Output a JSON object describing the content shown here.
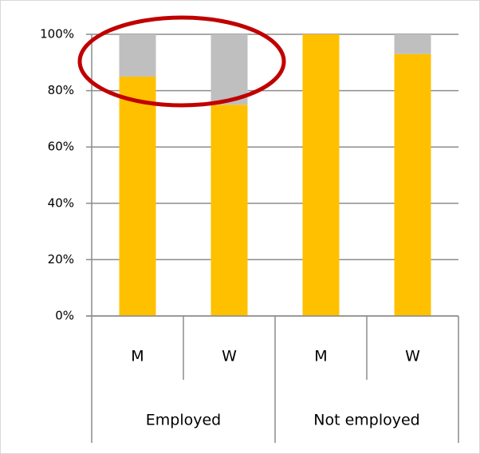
{
  "chart_data": {
    "type": "stacked-bar",
    "categories": [
      "M",
      "W",
      "M",
      "W"
    ],
    "groups": [
      "Employed",
      "Not employed"
    ],
    "series": [
      {
        "color": "#ffc000",
        "values": [
          85,
          75,
          100,
          93
        ]
      },
      {
        "color": "#bfbfbf",
        "values": [
          15,
          25,
          0,
          7
        ]
      }
    ],
    "ylim": [
      0,
      100
    ],
    "yticks": [
      {
        "value": 0,
        "label": "0%"
      },
      {
        "value": 20,
        "label": "20%"
      },
      {
        "value": 40,
        "label": "40%"
      },
      {
        "value": 60,
        "label": "60%"
      },
      {
        "value": 80,
        "label": "80%"
      },
      {
        "value": 100,
        "label": "100%"
      }
    ],
    "grid": true
  }
}
